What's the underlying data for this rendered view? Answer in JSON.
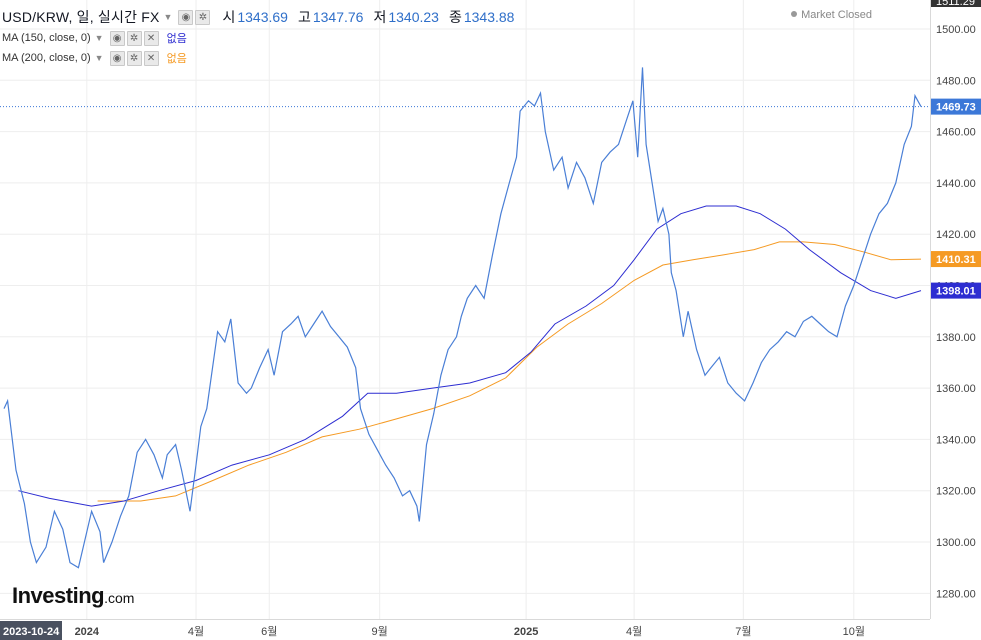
{
  "header": {
    "symbol": "USD/KRW, 일, 실시간 FX",
    "open_label": "시",
    "open": "1343.69",
    "high_label": "고",
    "high": "1347.76",
    "low_label": "저",
    "low": "1340.23",
    "close_label": "종",
    "close": "1343.88",
    "ma150_label": "MA (150, close, 0)",
    "ma150_value": "없음",
    "ma200_label": "MA (200, close, 0)",
    "ma200_value": "없음",
    "market_status": "Market Closed"
  },
  "logo": {
    "brand": "Investing",
    "suffix": ".com"
  },
  "colors": {
    "price": "#4a7fd6",
    "ma150": "#2d2dd1",
    "ma200": "#f59a23",
    "last_price_tag": "#3c78d8",
    "ma150_tag": "#2d2dd1",
    "ma200_tag": "#f59a23",
    "grid": "#eeeeee",
    "crosshair_date_bg": "#4a5160"
  },
  "chart_data": {
    "type": "line",
    "ylim": [
      1270,
      1511.29
    ],
    "y_ticks": [
      1280,
      1300,
      1320,
      1340,
      1360,
      1380,
      1400,
      1420,
      1440,
      1460,
      1480,
      1500
    ],
    "top_label": "1511.29",
    "x_start": "2023-10-24",
    "x_end": "2025-11-26",
    "x_ticks": [
      {
        "label": "2023-10-24",
        "date": "2023-10-24",
        "highlight": true
      },
      {
        "label": "2024",
        "date": "2024-01-01"
      },
      {
        "label": "4월",
        "date": "2024-04-01"
      },
      {
        "label": "6월",
        "date": "2024-06-01"
      },
      {
        "label": "9월",
        "date": "2024-09-01"
      },
      {
        "label": "2025",
        "date": "2025-01-01"
      },
      {
        "label": "4월",
        "date": "2025-04-01"
      },
      {
        "label": "7월",
        "date": "2025-07-01"
      },
      {
        "label": "10월",
        "date": "2025-10-01"
      }
    ],
    "series": [
      {
        "key": "price",
        "points": [
          [
            "2023-10-24",
            1352
          ],
          [
            "2023-10-27",
            1355
          ],
          [
            "2023-11-03",
            1328
          ],
          [
            "2023-11-10",
            1315
          ],
          [
            "2023-11-15",
            1300
          ],
          [
            "2023-11-20",
            1292
          ],
          [
            "2023-11-28",
            1298
          ],
          [
            "2023-12-05",
            1312
          ],
          [
            "2023-12-12",
            1305
          ],
          [
            "2023-12-18",
            1292
          ],
          [
            "2023-12-25",
            1290
          ],
          [
            "2023-12-29",
            1298
          ],
          [
            "2024-01-05",
            1312
          ],
          [
            "2024-01-12",
            1304
          ],
          [
            "2024-01-15",
            1292
          ],
          [
            "2024-01-22",
            1300
          ],
          [
            "2024-01-29",
            1310
          ],
          [
            "2024-02-05",
            1318
          ],
          [
            "2024-02-12",
            1335
          ],
          [
            "2024-02-19",
            1340
          ],
          [
            "2024-02-26",
            1334
          ],
          [
            "2024-03-04",
            1325
          ],
          [
            "2024-03-08",
            1334
          ],
          [
            "2024-03-15",
            1338
          ],
          [
            "2024-03-20",
            1328
          ],
          [
            "2024-03-27",
            1312
          ],
          [
            "2024-04-01",
            1330
          ],
          [
            "2024-04-05",
            1345
          ],
          [
            "2024-04-10",
            1352
          ],
          [
            "2024-04-16",
            1372
          ],
          [
            "2024-04-19",
            1382
          ],
          [
            "2024-04-25",
            1378
          ],
          [
            "2024-04-30",
            1387
          ],
          [
            "2024-05-06",
            1362
          ],
          [
            "2024-05-13",
            1358
          ],
          [
            "2024-05-17",
            1360
          ],
          [
            "2024-05-24",
            1368
          ],
          [
            "2024-05-31",
            1375
          ],
          [
            "2024-06-05",
            1365
          ],
          [
            "2024-06-12",
            1382
          ],
          [
            "2024-06-19",
            1385
          ],
          [
            "2024-06-25",
            1388
          ],
          [
            "2024-07-01",
            1380
          ],
          [
            "2024-07-08",
            1385
          ],
          [
            "2024-07-15",
            1390
          ],
          [
            "2024-07-22",
            1384
          ],
          [
            "2024-07-29",
            1380
          ],
          [
            "2024-08-05",
            1376
          ],
          [
            "2024-08-12",
            1368
          ],
          [
            "2024-08-16",
            1352
          ],
          [
            "2024-08-23",
            1342
          ],
          [
            "2024-08-30",
            1336
          ],
          [
            "2024-09-06",
            1330
          ],
          [
            "2024-09-13",
            1325
          ],
          [
            "2024-09-20",
            1318
          ],
          [
            "2024-09-26",
            1320
          ],
          [
            "2024-10-02",
            1314
          ],
          [
            "2024-10-04",
            1308
          ],
          [
            "2024-10-10",
            1338
          ],
          [
            "2024-10-16",
            1350
          ],
          [
            "2024-10-22",
            1365
          ],
          [
            "2024-10-28",
            1375
          ],
          [
            "2024-11-04",
            1380
          ],
          [
            "2024-11-08",
            1388
          ],
          [
            "2024-11-13",
            1395
          ],
          [
            "2024-11-20",
            1400
          ],
          [
            "2024-11-27",
            1395
          ],
          [
            "2024-12-04",
            1412
          ],
          [
            "2024-12-11",
            1428
          ],
          [
            "2024-12-18",
            1440
          ],
          [
            "2024-12-24",
            1450
          ],
          [
            "2024-12-27",
            1468
          ],
          [
            "2025-01-03",
            1472
          ],
          [
            "2025-01-08",
            1470
          ],
          [
            "2025-01-13",
            1475
          ],
          [
            "2025-01-17",
            1460
          ],
          [
            "2025-01-24",
            1445
          ],
          [
            "2025-01-31",
            1450
          ],
          [
            "2025-02-05",
            1438
          ],
          [
            "2025-02-12",
            1448
          ],
          [
            "2025-02-19",
            1442
          ],
          [
            "2025-02-26",
            1432
          ],
          [
            "2025-03-05",
            1448
          ],
          [
            "2025-03-12",
            1452
          ],
          [
            "2025-03-19",
            1455
          ],
          [
            "2025-03-26",
            1465
          ],
          [
            "2025-03-31",
            1472
          ],
          [
            "2025-04-04",
            1450
          ],
          [
            "2025-04-08",
            1485
          ],
          [
            "2025-04-11",
            1455
          ],
          [
            "2025-04-16",
            1440
          ],
          [
            "2025-04-21",
            1425
          ],
          [
            "2025-04-25",
            1430
          ],
          [
            "2025-04-30",
            1420
          ],
          [
            "2025-05-02",
            1405
          ],
          [
            "2025-05-06",
            1398
          ],
          [
            "2025-05-12",
            1380
          ],
          [
            "2025-05-16",
            1390
          ],
          [
            "2025-05-23",
            1375
          ],
          [
            "2025-05-30",
            1365
          ],
          [
            "2025-06-04",
            1368
          ],
          [
            "2025-06-11",
            1372
          ],
          [
            "2025-06-18",
            1362
          ],
          [
            "2025-06-25",
            1358
          ],
          [
            "2025-07-02",
            1355
          ],
          [
            "2025-07-09",
            1362
          ],
          [
            "2025-07-16",
            1370
          ],
          [
            "2025-07-23",
            1375
          ],
          [
            "2025-07-30",
            1378
          ],
          [
            "2025-08-06",
            1382
          ],
          [
            "2025-08-13",
            1380
          ],
          [
            "2025-08-20",
            1386
          ],
          [
            "2025-08-27",
            1388
          ],
          [
            "2025-09-03",
            1385
          ],
          [
            "2025-09-10",
            1382
          ],
          [
            "2025-09-17",
            1380
          ],
          [
            "2025-09-24",
            1392
          ],
          [
            "2025-10-01",
            1400
          ],
          [
            "2025-10-08",
            1410
          ],
          [
            "2025-10-15",
            1420
          ],
          [
            "2025-10-22",
            1428
          ],
          [
            "2025-10-29",
            1432
          ],
          [
            "2025-11-05",
            1440
          ],
          [
            "2025-11-12",
            1455
          ],
          [
            "2025-11-18",
            1462
          ],
          [
            "2025-11-21",
            1474
          ],
          [
            "2025-11-26",
            1469.73
          ]
        ]
      },
      {
        "key": "ma150",
        "points": [
          [
            "2023-11-05",
            1320
          ],
          [
            "2023-12-01",
            1317
          ],
          [
            "2024-01-05",
            1314
          ],
          [
            "2024-02-01",
            1316
          ],
          [
            "2024-03-01",
            1320
          ],
          [
            "2024-04-01",
            1324
          ],
          [
            "2024-05-01",
            1330
          ],
          [
            "2024-06-01",
            1334
          ],
          [
            "2024-07-01",
            1340
          ],
          [
            "2024-08-01",
            1349
          ],
          [
            "2024-08-22",
            1358
          ],
          [
            "2024-09-15",
            1358
          ],
          [
            "2024-10-15",
            1360
          ],
          [
            "2024-11-15",
            1362
          ],
          [
            "2024-12-15",
            1366
          ],
          [
            "2025-01-05",
            1374
          ],
          [
            "2025-01-25",
            1385
          ],
          [
            "2025-02-20",
            1392
          ],
          [
            "2025-03-15",
            1400
          ],
          [
            "2025-04-01",
            1410
          ],
          [
            "2025-04-20",
            1422
          ],
          [
            "2025-05-10",
            1428
          ],
          [
            "2025-05-31",
            1431
          ],
          [
            "2025-06-25",
            1431
          ],
          [
            "2025-07-15",
            1428
          ],
          [
            "2025-08-05",
            1422
          ],
          [
            "2025-08-25",
            1414
          ],
          [
            "2025-09-20",
            1405
          ],
          [
            "2025-10-15",
            1398
          ],
          [
            "2025-11-05",
            1395
          ],
          [
            "2025-11-26",
            1398.01
          ]
        ]
      },
      {
        "key": "ma200",
        "points": [
          [
            "2024-01-10",
            1316
          ],
          [
            "2024-02-15",
            1316
          ],
          [
            "2024-03-15",
            1318
          ],
          [
            "2024-04-15",
            1324
          ],
          [
            "2024-05-15",
            1330
          ],
          [
            "2024-06-15",
            1335
          ],
          [
            "2024-07-15",
            1341
          ],
          [
            "2024-08-15",
            1344
          ],
          [
            "2024-09-15",
            1348
          ],
          [
            "2024-10-15",
            1352
          ],
          [
            "2024-11-15",
            1357
          ],
          [
            "2024-12-15",
            1364
          ],
          [
            "2025-01-10",
            1376
          ],
          [
            "2025-02-05",
            1385
          ],
          [
            "2025-03-05",
            1393
          ],
          [
            "2025-04-01",
            1402
          ],
          [
            "2025-04-25",
            1408
          ],
          [
            "2025-05-20",
            1410
          ],
          [
            "2025-06-15",
            1412
          ],
          [
            "2025-07-10",
            1414
          ],
          [
            "2025-07-31",
            1417
          ],
          [
            "2025-08-20",
            1417
          ],
          [
            "2025-09-15",
            1416
          ],
          [
            "2025-10-10",
            1413
          ],
          [
            "2025-11-01",
            1410
          ],
          [
            "2025-11-26",
            1410.31
          ]
        ]
      }
    ],
    "tags": [
      {
        "key": "last_price",
        "value": 1469.73,
        "label": "1469.73"
      },
      {
        "key": "ma200",
        "value": 1410.31,
        "label": "1410.31"
      },
      {
        "key": "ma150",
        "value": 1398.01,
        "label": "1398.01"
      }
    ]
  }
}
